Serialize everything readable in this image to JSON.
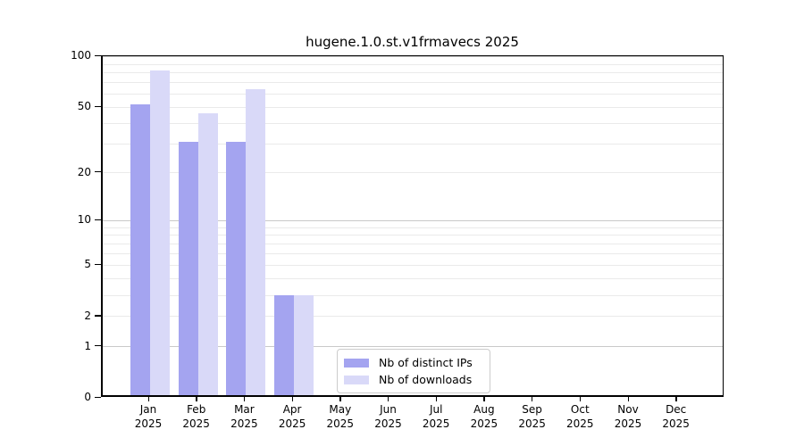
{
  "chart_data": {
    "type": "bar",
    "title": "hugene.1.0.st.v1frmavecs 2025",
    "categories": [
      "Jan",
      "Feb",
      "Mar",
      "Apr",
      "May",
      "Jun",
      "Jul",
      "Aug",
      "Sep",
      "Oct",
      "Nov",
      "Dec"
    ],
    "year_label": "2025",
    "series": [
      {
        "name": "Nb of distinct IPs",
        "color": "#a4a4f0",
        "values": [
          52,
          31,
          31,
          3,
          0,
          0,
          0,
          0,
          0,
          0,
          0,
          0
        ]
      },
      {
        "name": "Nb of downloads",
        "color": "#d9d9f8",
        "values": [
          83,
          46,
          64,
          3,
          0,
          0,
          0,
          0,
          0,
          0,
          0,
          0
        ]
      }
    ],
    "y": {
      "scale": "log10(1+x)",
      "range": [
        0,
        100
      ],
      "ticks": [
        0,
        1,
        2,
        5,
        10,
        20,
        50,
        100
      ],
      "major_gridlines": [
        1,
        10,
        100
      ],
      "minor_gridlines": [
        2,
        3,
        4,
        5,
        6,
        7,
        8,
        9,
        20,
        30,
        40,
        50,
        60,
        70,
        80,
        90
      ]
    },
    "grid": "horizontal",
    "legend_position": "bottom-center",
    "colors": {
      "minor_grid": "#eaeaea",
      "major_grid": "#c9c9c9",
      "spine": "#000000",
      "text": "#000000",
      "background": "#ffffff",
      "legend_border": "#cccccc"
    }
  }
}
